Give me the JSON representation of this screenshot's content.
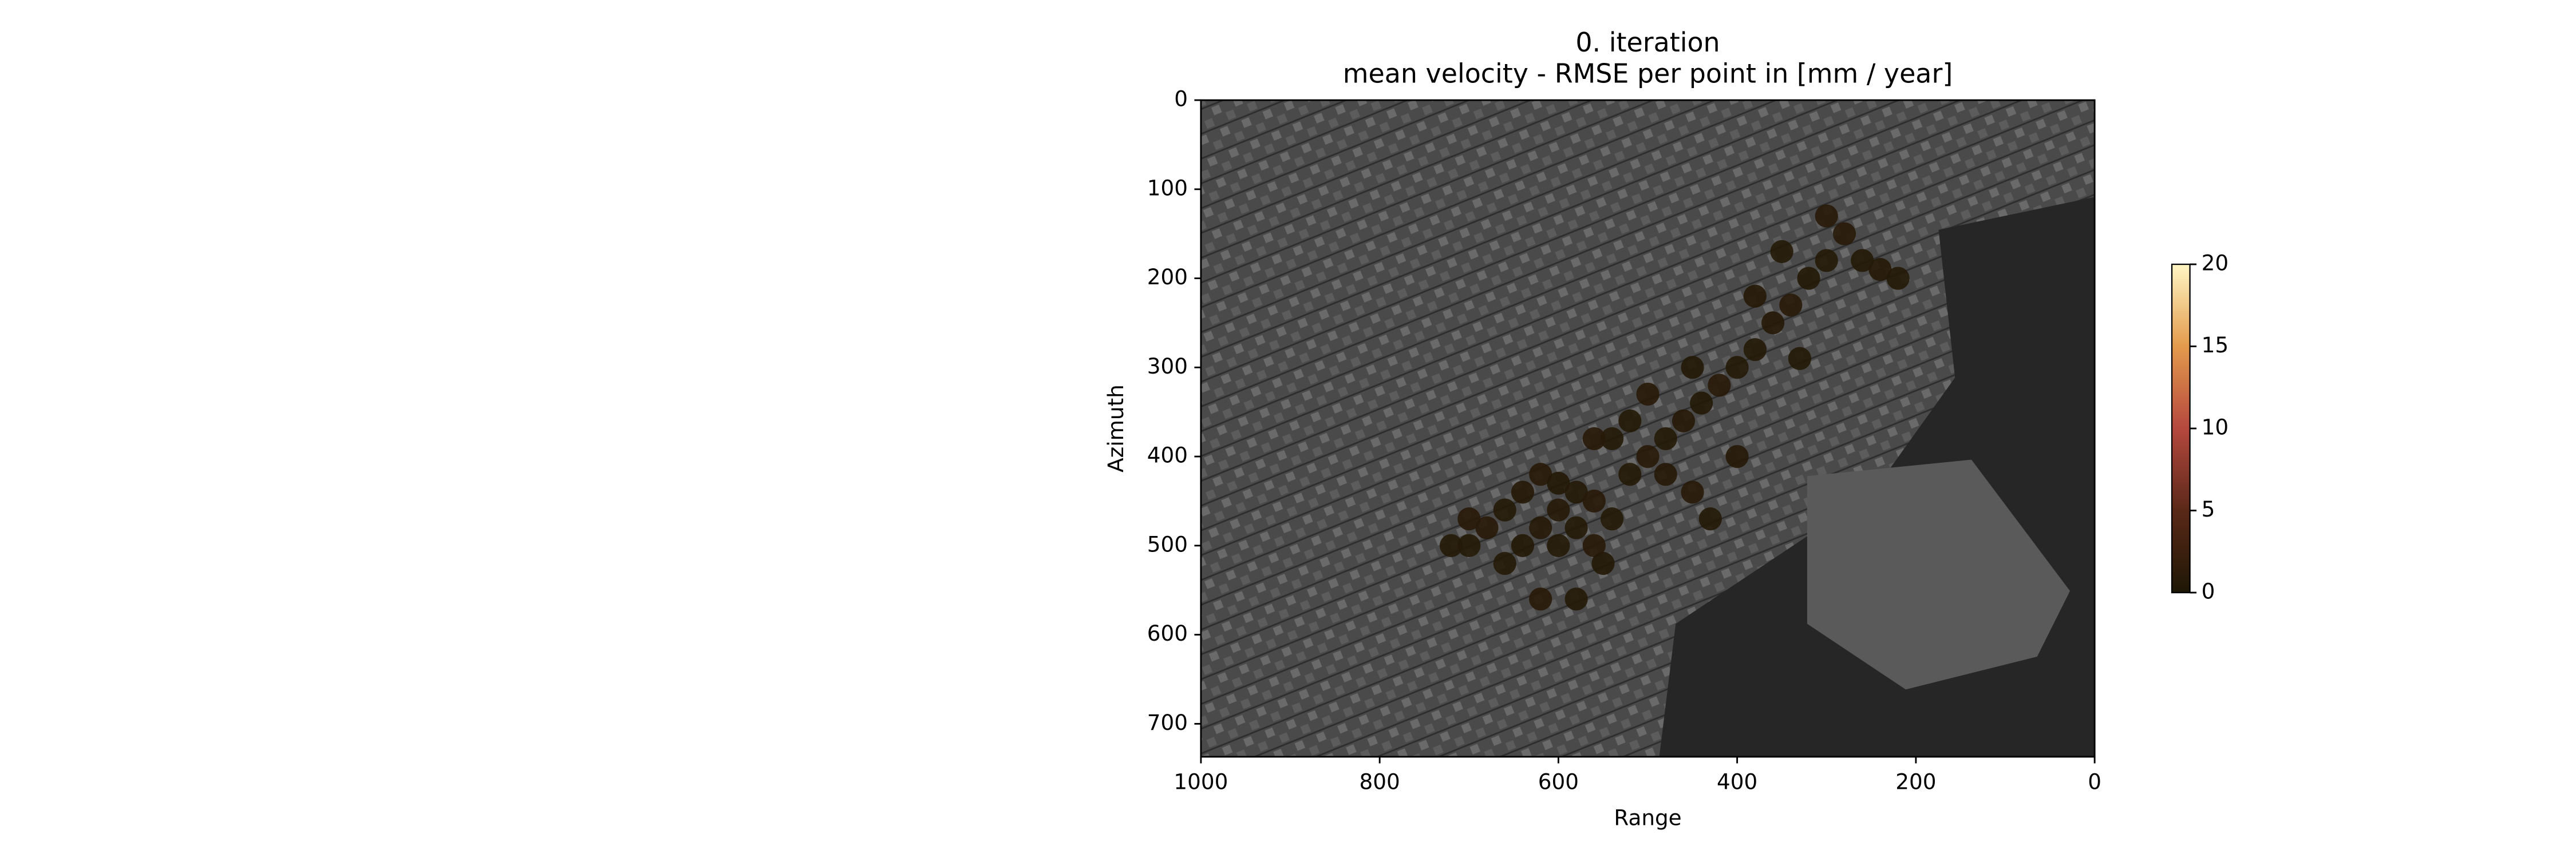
{
  "chart_data": {
    "type": "scatter",
    "title": "0. iteration",
    "subtitle": "mean velocity - RMSE per point in [mm / year]",
    "x_label": "Range",
    "y_label": "Azimuth",
    "x": [
      700,
      680,
      660,
      640,
      620,
      600,
      580,
      560,
      540,
      620,
      600,
      580,
      560,
      640,
      660,
      700,
      720,
      600,
      520,
      500,
      480,
      460,
      440,
      420,
      400,
      380,
      360,
      340,
      320,
      300,
      280,
      260,
      240,
      220,
      300,
      350,
      380,
      450,
      500,
      520,
      540,
      480,
      450,
      550,
      580,
      620,
      430,
      400,
      330,
      560
    ],
    "y": [
      500,
      480,
      460,
      440,
      420,
      430,
      440,
      450,
      470,
      480,
      500,
      480,
      500,
      500,
      520,
      470,
      500,
      460,
      420,
      400,
      380,
      360,
      340,
      320,
      300,
      280,
      250,
      230,
      200,
      180,
      150,
      180,
      190,
      200,
      130,
      170,
      220,
      300,
      330,
      360,
      380,
      420,
      440,
      520,
      560,
      560,
      470,
      400,
      290,
      380
    ],
    "values": [
      0.6,
      0.8,
      0.5,
      0.7,
      0.9,
      0.4,
      0.6,
      0.8,
      0.5,
      0.7,
      0.6,
      0.5,
      0.9,
      0.4,
      0.6,
      0.8,
      0.5,
      0.7,
      0.6,
      0.9,
      0.5,
      0.7,
      0.4,
      0.8,
      0.6,
      0.5,
      0.7,
      0.9,
      0.4,
      0.6,
      0.8,
      0.5,
      0.7,
      0.6,
      0.9,
      0.5,
      0.7,
      0.4,
      0.8,
      0.6,
      0.5,
      0.7,
      0.9,
      0.4,
      0.6,
      0.8,
      0.5,
      0.7,
      0.6,
      0.9
    ],
    "xlim": [
      1000,
      0
    ],
    "xticks": [
      1000,
      800,
      600,
      400,
      200,
      0
    ],
    "ylim": [
      737,
      0
    ],
    "yticks": [
      0,
      100,
      200,
      300,
      400,
      500,
      600,
      700
    ],
    "clim": [
      0,
      20
    ],
    "cticks": [
      0,
      5,
      10,
      15,
      20
    ],
    "cmap": [
      "#1e1705",
      "#5a2818",
      "#b5483e",
      "#e39a4c",
      "#fff6c4"
    ]
  }
}
